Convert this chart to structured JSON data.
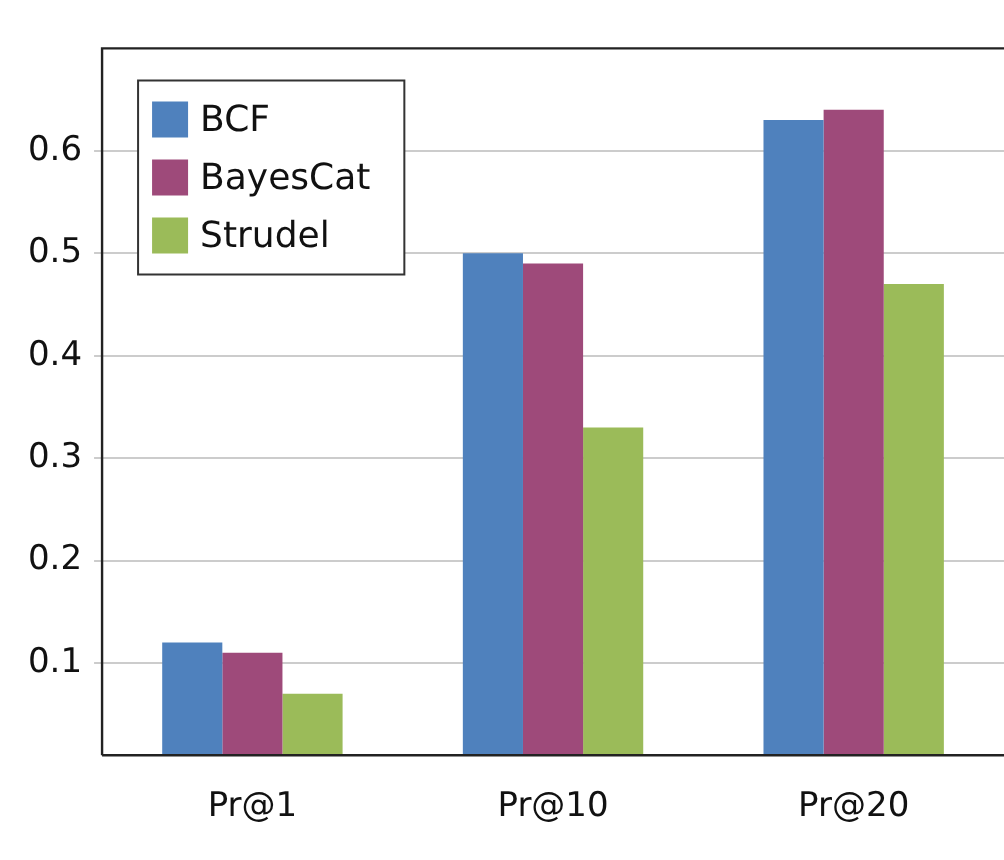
{
  "chart_data": {
    "type": "bar",
    "categories": [
      "Pr@1",
      "Pr@10",
      "Pr@20"
    ],
    "series": [
      {
        "name": "BCF",
        "color": "#4f81bd",
        "values": [
          0.12,
          0.5,
          0.63
        ]
      },
      {
        "name": "BayesCat",
        "color": "#9e4a7a",
        "values": [
          0.11,
          0.49,
          0.64
        ]
      },
      {
        "name": "Strudel",
        "color": "#9bbb59",
        "values": [
          0.07,
          0.33,
          0.47
        ]
      }
    ],
    "ylim": [
      0.01,
      0.7
    ],
    "yticks": [
      0.1,
      0.2,
      0.3,
      0.4,
      0.5,
      0.6
    ],
    "grid": "y",
    "legend": "top left"
  }
}
